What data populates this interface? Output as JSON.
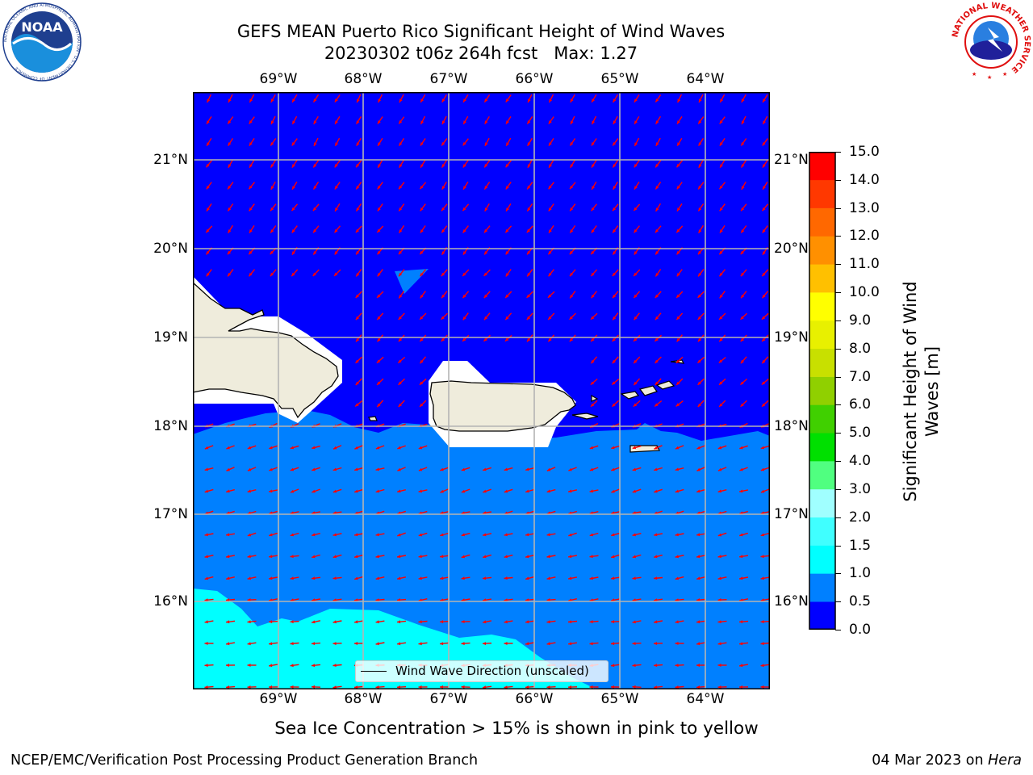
{
  "header": {
    "title_line1": "GEFS MEAN Puerto Rico Significant Height of Wind Waves",
    "title_line2": "20230302 t06z 264h fcst   Max: 1.27"
  },
  "logos": {
    "noaa_text": "NOAA",
    "noaa_ring_text": "NATIONAL OCEANIC AND ATMOSPHERIC ADMINISTRATION · U.S. DEPARTMENT OF COMMERCE",
    "nws_ring_text": "NATIONAL WEATHER SERVICE"
  },
  "map": {
    "lon_labels": [
      "69°W",
      "68°W",
      "67°W",
      "66°W",
      "65°W",
      "64°W"
    ],
    "lat_labels": [
      "21°N",
      "20°N",
      "19°N",
      "18°N",
      "17°N",
      "16°N"
    ],
    "land_color": "#efecdc",
    "arrow_color": "#ff0000",
    "legend_label": "Wind Wave Direction (unscaled)"
  },
  "colorbar": {
    "label_line1": "Significant Height of Wind",
    "label_line2": "Waves [m]",
    "ticks": [
      "0.0",
      "0.5",
      "1.0",
      "1.5",
      "2.0",
      "3.0",
      "4.0",
      "5.0",
      "6.0",
      "7.0",
      "8.0",
      "9.0",
      "10.0",
      "11.0",
      "12.0",
      "13.0",
      "14.0",
      "15.0"
    ],
    "colors": [
      "#0000ff",
      "#0080ff",
      "#00ffff",
      "#40ffff",
      "#a0ffff",
      "#50ff80",
      "#00e000",
      "#40d000",
      "#90d000",
      "#c8e000",
      "#e8f000",
      "#ffff00",
      "#ffc000",
      "#ff9000",
      "#ff6800",
      "#ff3800",
      "#ff0000"
    ]
  },
  "ice_note": "Sea Ice Concentration > 15% is shown in pink to yellow",
  "footer": {
    "left": "NCEP/EMC/Verification Post Processing Product Generation Branch",
    "right_prefix": "04 Mar 2023 on ",
    "right_machine": "Hera"
  }
}
